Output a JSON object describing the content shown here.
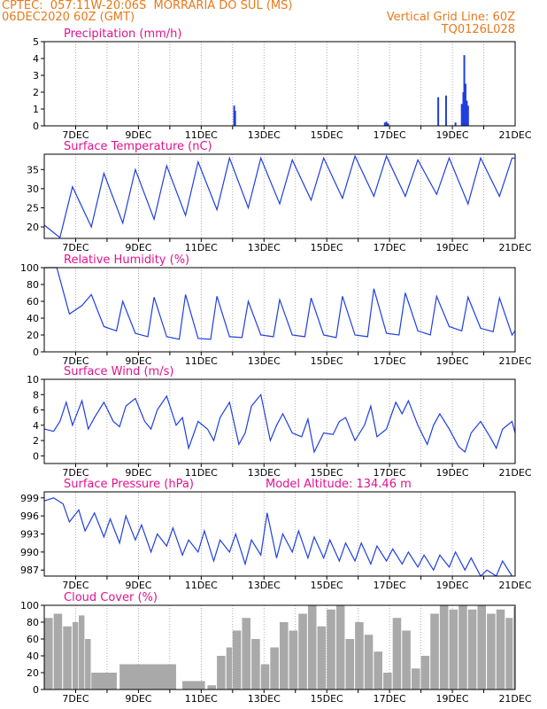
{
  "header": {
    "line1_left": "CPTEC:  057:11W-20:06S  MORRARIA DO SUL (MS)",
    "line2_left": "06DEC2020 60Z (GMT)",
    "line2_right": "Vertical Grid Line: 60Z",
    "line3_right": "TQ0126L028"
  },
  "colors": {
    "header": "#e8791a",
    "title": "#e0138f",
    "series": "#1f3fe0",
    "cloud": "#a9a9a9"
  },
  "date_axis": {
    "labels": [
      "7DEC",
      "9DEC",
      "11DEC",
      "13DEC",
      "15DEC",
      "17DEC",
      "19DEC",
      "21DEC"
    ]
  },
  "chart_data": [
    {
      "type": "bar",
      "title": "Precipitation (mm/h)",
      "ylim": [
        0,
        5
      ],
      "yticks": [
        0,
        1,
        2,
        3,
        4,
        5
      ],
      "xlim_days": [
        6.0,
        21.0
      ],
      "x": [
        12.05,
        12.08,
        16.85,
        16.9,
        16.95,
        18.55,
        18.8,
        19.1,
        19.3,
        19.35,
        19.38,
        19.42,
        19.46,
        19.5
      ],
      "values": [
        1.2,
        0.9,
        0.2,
        0.25,
        0.15,
        1.7,
        1.8,
        0.2,
        1.3,
        2.0,
        4.2,
        2.5,
        1.5,
        1.2
      ]
    },
    {
      "type": "line",
      "title": "Surface Temperature (nC)",
      "ylim": [
        17,
        39
      ],
      "yticks": [
        20,
        25,
        30,
        35
      ],
      "xlim_days": [
        6.0,
        21.0
      ],
      "x": [
        6.0,
        6.3,
        6.5,
        6.9,
        7.5,
        7.9,
        8.5,
        8.9,
        9.5,
        9.9,
        10.5,
        10.9,
        11.5,
        11.9,
        12.5,
        12.9,
        13.5,
        13.9,
        14.5,
        14.9,
        15.5,
        15.9,
        16.5,
        16.9,
        17.5,
        17.9,
        18.5,
        18.9,
        19.5,
        19.9,
        20.5,
        20.9,
        21.0
      ],
      "values": [
        20.5,
        18.5,
        17.2,
        30.5,
        20.0,
        34.0,
        21.0,
        35.0,
        22.0,
        36.0,
        23.0,
        37.0,
        24.5,
        38.0,
        25.0,
        38.0,
        26.0,
        37.5,
        27.0,
        38.0,
        27.5,
        38.5,
        28.0,
        38.5,
        28.0,
        37.5,
        28.5,
        38.0,
        26.0,
        38.0,
        28.0,
        38.0,
        38.0
      ]
    },
    {
      "type": "line",
      "title": "Relative Humidity (%)",
      "ylim": [
        0,
        100
      ],
      "yticks": [
        0,
        20,
        40,
        60,
        80,
        100
      ],
      "xlim_days": [
        6.0,
        21.0
      ],
      "x": [
        6.0,
        6.4,
        6.8,
        7.2,
        7.5,
        7.9,
        8.3,
        8.5,
        8.9,
        9.3,
        9.5,
        9.9,
        10.3,
        10.5,
        10.9,
        11.3,
        11.5,
        11.9,
        12.3,
        12.5,
        12.9,
        13.3,
        13.5,
        13.9,
        14.3,
        14.5,
        14.9,
        15.3,
        15.5,
        15.9,
        16.3,
        16.5,
        16.9,
        17.3,
        17.5,
        17.9,
        18.3,
        18.5,
        18.9,
        19.3,
        19.5,
        19.9,
        20.3,
        20.5,
        20.9,
        21.0
      ],
      "values": [
        100,
        100,
        45,
        55,
        68,
        30,
        25,
        60,
        22,
        18,
        65,
        18,
        15,
        68,
        16,
        15,
        66,
        18,
        17,
        60,
        20,
        18,
        62,
        20,
        18,
        64,
        20,
        17,
        66,
        20,
        18,
        75,
        22,
        20,
        70,
        25,
        20,
        66,
        30,
        25,
        65,
        28,
        24,
        64,
        20,
        25
      ]
    },
    {
      "type": "line",
      "title": "Surface Wind (m/s)",
      "ylim": [
        -1,
        10
      ],
      "yticks": [
        0,
        2,
        4,
        6,
        8,
        10
      ],
      "xlim_days": [
        6.0,
        21.0
      ],
      "x": [
        6.0,
        6.3,
        6.5,
        6.7,
        6.9,
        7.2,
        7.4,
        7.6,
        7.9,
        8.2,
        8.4,
        8.6,
        8.9,
        9.2,
        9.4,
        9.6,
        9.9,
        10.2,
        10.4,
        10.6,
        10.9,
        11.2,
        11.4,
        11.6,
        11.9,
        12.2,
        12.4,
        12.6,
        12.9,
        13.2,
        13.4,
        13.6,
        13.9,
        14.2,
        14.4,
        14.6,
        14.9,
        15.2,
        15.4,
        15.6,
        15.9,
        16.2,
        16.4,
        16.6,
        16.9,
        17.2,
        17.4,
        17.6,
        17.9,
        18.2,
        18.4,
        18.6,
        18.9,
        19.2,
        19.4,
        19.6,
        19.9,
        20.2,
        20.4,
        20.6,
        20.9,
        21.0
      ],
      "values": [
        3.5,
        3.2,
        4.5,
        7.0,
        4.0,
        7.2,
        3.5,
        5.0,
        7.0,
        4.5,
        3.8,
        6.5,
        7.5,
        4.5,
        3.5,
        6.0,
        7.8,
        4.0,
        5.0,
        1.0,
        4.5,
        3.5,
        2.0,
        5.0,
        7.0,
        1.5,
        3.0,
        6.5,
        8.0,
        2.0,
        4.0,
        5.5,
        3.0,
        2.5,
        4.8,
        0.5,
        3.0,
        2.8,
        4.5,
        5.0,
        2.0,
        4.0,
        6.5,
        2.5,
        3.5,
        7.0,
        5.5,
        7.2,
        4.0,
        1.5,
        4.0,
        5.5,
        3.5,
        1.2,
        0.5,
        3.0,
        4.5,
        2.5,
        1.0,
        3.5,
        4.5,
        3.0
      ]
    },
    {
      "type": "line",
      "title": "Surface Pressure (hPa)",
      "annotation": "Model Altitude: 134.46 m",
      "ylim": [
        986,
        1000
      ],
      "yticks": [
        987,
        990,
        993,
        996,
        999
      ],
      "xlim_days": [
        6.0,
        21.0
      ],
      "x": [
        6.0,
        6.3,
        6.6,
        6.8,
        7.1,
        7.3,
        7.6,
        7.9,
        8.1,
        8.4,
        8.6,
        8.9,
        9.1,
        9.4,
        9.6,
        9.9,
        10.1,
        10.4,
        10.6,
        10.9,
        11.1,
        11.4,
        11.6,
        11.9,
        12.1,
        12.4,
        12.6,
        12.9,
        13.1,
        13.4,
        13.6,
        13.9,
        14.1,
        14.4,
        14.6,
        14.9,
        15.1,
        15.4,
        15.6,
        15.9,
        16.1,
        16.4,
        16.6,
        16.9,
        17.1,
        17.4,
        17.6,
        17.9,
        18.1,
        18.4,
        18.6,
        18.9,
        19.1,
        19.4,
        19.6,
        19.9,
        20.1,
        20.4,
        20.6,
        20.9
      ],
      "values": [
        998.5,
        999.0,
        998.0,
        995.0,
        997.0,
        993.5,
        996.5,
        992.5,
        995.5,
        991.5,
        996.0,
        992.0,
        994.5,
        990.0,
        993.0,
        991.0,
        994.0,
        989.5,
        992.0,
        990.0,
        993.5,
        988.5,
        992.0,
        990.0,
        993.0,
        988.0,
        992.0,
        989.5,
        996.5,
        989.0,
        993.0,
        990.0,
        993.5,
        989.0,
        992.5,
        989.0,
        992.0,
        988.5,
        991.5,
        988.5,
        991.5,
        988.0,
        991.0,
        988.5,
        990.5,
        988.0,
        990.0,
        987.5,
        989.5,
        987.0,
        989.5,
        987.5,
        990.0,
        987.0,
        989.0,
        986.0,
        987.0,
        985.5,
        988.5,
        985.5
      ]
    },
    {
      "type": "bar",
      "title": "Cloud Cover (%)",
      "ylim": [
        0,
        100
      ],
      "yticks": [
        0,
        20,
        40,
        60,
        80,
        100
      ],
      "xlim_days": [
        6.0,
        21.0
      ],
      "x": [
        6.0,
        6.3,
        6.6,
        6.9,
        7.1,
        7.3,
        7.5,
        8.4,
        10.4,
        11.2,
        11.5,
        11.8,
        12.0,
        12.3,
        12.6,
        12.9,
        13.2,
        13.5,
        13.8,
        14.1,
        14.4,
        14.7,
        15.0,
        15.3,
        15.6,
        15.9,
        16.2,
        16.5,
        16.8,
        17.1,
        17.4,
        17.7,
        18.0,
        18.3,
        18.6,
        18.9,
        19.2,
        19.5,
        19.8,
        20.1,
        20.4,
        20.7,
        20.95
      ],
      "values": [
        85,
        90,
        75,
        80,
        88,
        60,
        20,
        30,
        10,
        5,
        40,
        50,
        70,
        85,
        60,
        30,
        50,
        80,
        70,
        90,
        100,
        75,
        95,
        100,
        60,
        80,
        65,
        45,
        20,
        85,
        70,
        25,
        40,
        90,
        100,
        95,
        100,
        95,
        100,
        90,
        95,
        85,
        98
      ]
    }
  ]
}
